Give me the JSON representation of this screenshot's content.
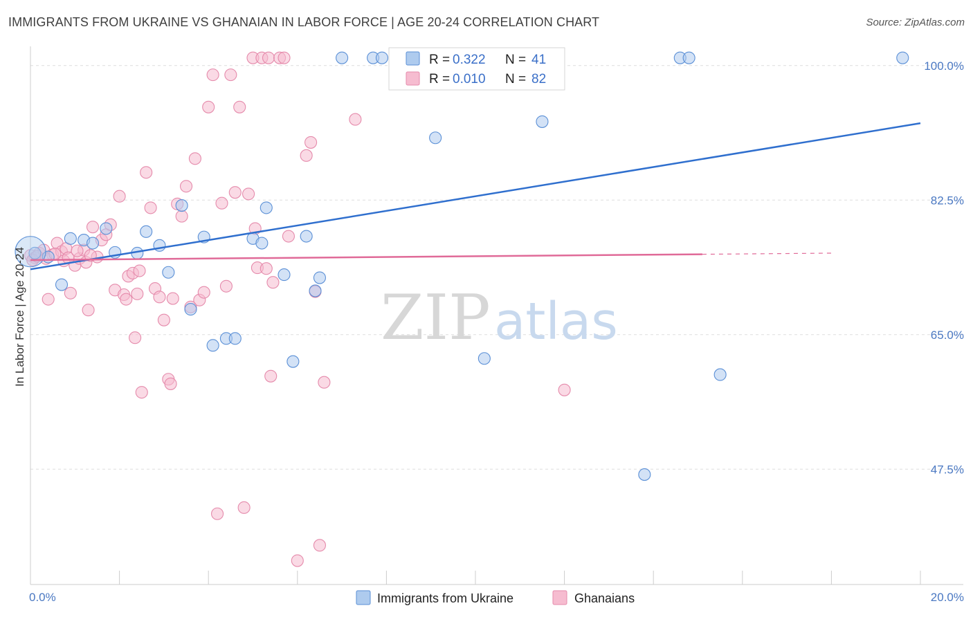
{
  "title": "IMMIGRANTS FROM UKRAINE VS GHANAIAN IN LABOR FORCE | AGE 20-24 CORRELATION CHART",
  "source": "Source: ZipAtlas.com",
  "watermark": {
    "zip": "ZIP",
    "atlas": "atlas"
  },
  "colors": {
    "ukraine_fill": "#aecbee",
    "ukraine_stroke": "#5a8fd6",
    "ukraine_line": "#2f6fce",
    "ghana_fill": "#f6bcd0",
    "ghana_stroke": "#e58aab",
    "ghana_line": "#e06a98",
    "tick_label": "#4a78c2",
    "grid": "#dddddd"
  },
  "chart_data": {
    "type": "scatter",
    "xlabel": "",
    "ylabel": "In Labor Force | Age 20-24",
    "xlim": [
      0,
      20
    ],
    "ylim": [
      32.5,
      102.5
    ],
    "x_ticks": [
      0,
      20
    ],
    "x_tick_labels": [
      "0.0%",
      "20.0%"
    ],
    "y_ticks": [
      47.5,
      65.0,
      82.5,
      100.0
    ],
    "y_tick_labels": [
      "47.5%",
      "65.0%",
      "82.5%",
      "100.0%"
    ],
    "grid": true,
    "legend_position": "top-center",
    "legend": [
      {
        "r_label": "R =",
        "r_value": "0.322",
        "n_label": "N =",
        "n_value": "41"
      },
      {
        "r_label": "R =",
        "r_value": "0.010",
        "n_label": "N =",
        "n_value": "82"
      }
    ],
    "series": [
      {
        "name": "Immigrants from Ukraine",
        "trend": {
          "x": [
            0,
            20
          ],
          "y": [
            73.5,
            92.5
          ],
          "dashed_from": null
        },
        "points": [
          [
            0.1,
            75.6
          ],
          [
            0.4,
            75.1
          ],
          [
            0.7,
            71.5
          ],
          [
            0.9,
            77.5
          ],
          [
            1.2,
            77.3
          ],
          [
            1.4,
            76.9
          ],
          [
            1.7,
            78.8
          ],
          [
            1.9,
            75.7
          ],
          [
            2.4,
            75.6
          ],
          [
            2.6,
            78.4
          ],
          [
            2.9,
            76.6
          ],
          [
            3.1,
            73.1
          ],
          [
            3.4,
            81.8
          ],
          [
            3.6,
            68.3
          ],
          [
            3.9,
            77.7
          ],
          [
            4.1,
            63.6
          ],
          [
            4.4,
            64.5
          ],
          [
            4.6,
            64.5
          ],
          [
            5.0,
            77.5
          ],
          [
            5.2,
            76.9
          ],
          [
            5.3,
            81.5
          ],
          [
            5.7,
            72.8
          ],
          [
            5.9,
            61.5
          ],
          [
            6.2,
            77.8
          ],
          [
            6.4,
            70.7
          ],
          [
            6.5,
            72.4
          ],
          [
            7.0,
            101.0
          ],
          [
            7.7,
            101.0
          ],
          [
            7.9,
            101.0
          ],
          [
            8.4,
            100.8
          ],
          [
            9.1,
            90.6
          ],
          [
            9.6,
            101.0
          ],
          [
            10.2,
            61.9
          ],
          [
            10.9,
            101.0
          ],
          [
            11.5,
            92.7
          ],
          [
            13.8,
            46.8
          ],
          [
            14.6,
            101.0
          ],
          [
            14.8,
            101.0
          ],
          [
            15.5,
            59.8
          ],
          [
            19.6,
            101.0
          ],
          [
            0.0,
            75.8
          ]
        ]
      },
      {
        "name": "Ghanaians",
        "trend": {
          "x": [
            0,
            20
          ],
          "y": [
            74.7,
            75.7
          ],
          "dashed_from": 15.1
        },
        "points": [
          [
            0.0,
            75.3
          ],
          [
            0.1,
            75.0
          ],
          [
            0.2,
            75.6
          ],
          [
            0.3,
            76.0
          ],
          [
            0.4,
            69.6
          ],
          [
            0.5,
            75.4
          ],
          [
            0.6,
            76.9
          ],
          [
            0.7,
            75.8
          ],
          [
            0.8,
            76.2
          ],
          [
            0.9,
            70.4
          ],
          [
            1.0,
            74.0
          ],
          [
            1.1,
            74.9
          ],
          [
            1.2,
            76.0
          ],
          [
            1.25,
            74.4
          ],
          [
            1.3,
            68.2
          ],
          [
            1.4,
            79.0
          ],
          [
            1.5,
            75.1
          ],
          [
            1.6,
            77.3
          ],
          [
            1.7,
            78.0
          ],
          [
            1.8,
            79.3
          ],
          [
            1.9,
            70.8
          ],
          [
            2.0,
            83.0
          ],
          [
            2.1,
            70.2
          ],
          [
            2.15,
            69.6
          ],
          [
            2.2,
            72.6
          ],
          [
            2.3,
            73.0
          ],
          [
            2.35,
            64.6
          ],
          [
            2.4,
            70.3
          ],
          [
            2.5,
            57.5
          ],
          [
            2.6,
            86.1
          ],
          [
            2.7,
            81.5
          ],
          [
            2.8,
            71.0
          ],
          [
            2.9,
            69.9
          ],
          [
            3.0,
            66.9
          ],
          [
            3.1,
            59.2
          ],
          [
            3.15,
            58.6
          ],
          [
            3.2,
            69.7
          ],
          [
            3.3,
            82.0
          ],
          [
            3.4,
            80.4
          ],
          [
            3.5,
            84.3
          ],
          [
            3.6,
            68.6
          ],
          [
            3.7,
            87.9
          ],
          [
            3.8,
            69.5
          ],
          [
            3.9,
            70.5
          ],
          [
            4.0,
            94.6
          ],
          [
            4.1,
            98.8
          ],
          [
            4.2,
            41.7
          ],
          [
            4.3,
            82.1
          ],
          [
            4.4,
            71.3
          ],
          [
            4.5,
            98.8
          ],
          [
            4.6,
            83.5
          ],
          [
            4.7,
            94.6
          ],
          [
            4.8,
            42.5
          ],
          [
            4.9,
            83.3
          ],
          [
            5.0,
            101.0
          ],
          [
            5.05,
            78.8
          ],
          [
            5.1,
            73.7
          ],
          [
            5.2,
            101.0
          ],
          [
            5.3,
            73.6
          ],
          [
            5.35,
            101.0
          ],
          [
            5.4,
            59.6
          ],
          [
            5.45,
            71.8
          ],
          [
            5.6,
            101.0
          ],
          [
            5.7,
            101.0
          ],
          [
            5.8,
            77.8
          ],
          [
            6.0,
            35.6
          ],
          [
            6.2,
            88.3
          ],
          [
            6.3,
            90.0
          ],
          [
            6.4,
            70.6
          ],
          [
            6.5,
            37.6
          ],
          [
            6.6,
            58.8
          ],
          [
            7.3,
            93.0
          ],
          [
            0.05,
            74.7
          ],
          [
            0.15,
            75.2
          ],
          [
            0.35,
            74.9
          ],
          [
            0.55,
            75.5
          ],
          [
            0.75,
            74.6
          ],
          [
            0.85,
            75.0
          ],
          [
            1.05,
            75.9
          ],
          [
            12.0,
            57.8
          ],
          [
            2.45,
            73.3
          ],
          [
            1.35,
            75.3
          ]
        ]
      }
    ]
  },
  "bottom_legend": [
    {
      "label": "Immigrants from Ukraine"
    },
    {
      "label": "Ghanaians"
    }
  ]
}
